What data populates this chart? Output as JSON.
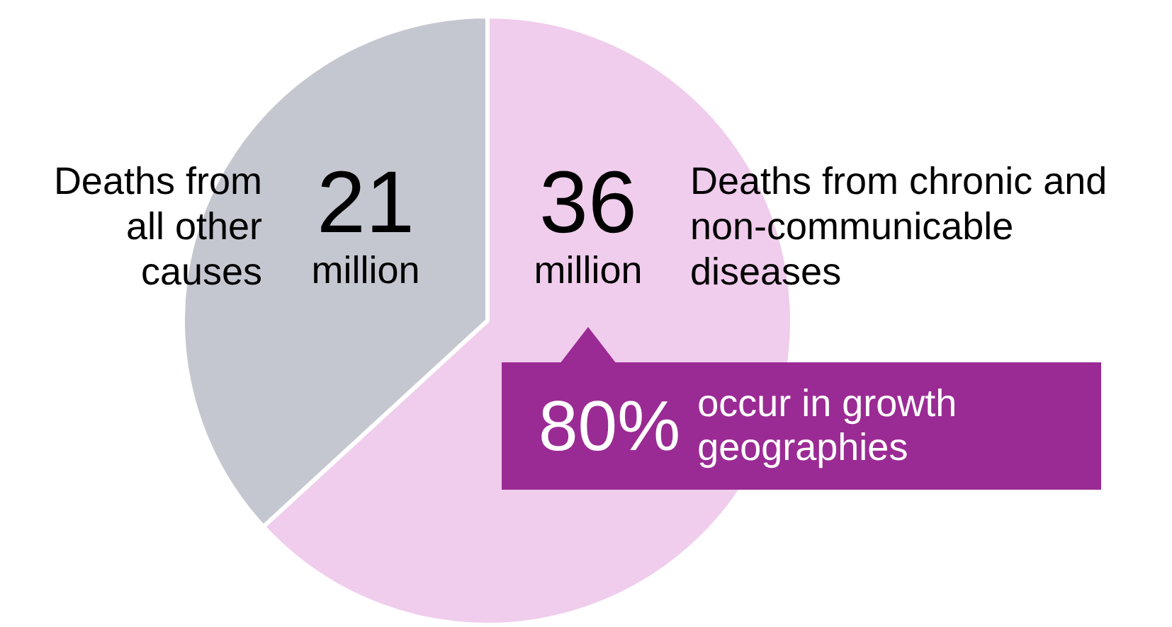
{
  "chart_data": {
    "type": "pie",
    "categories": [
      "Deaths from chronic and non-communicable diseases",
      "Deaths from all other causes"
    ],
    "values": [
      36,
      21
    ],
    "colors": [
      "#f0cdec",
      "#c5c7d0"
    ],
    "value_labels": [
      "36 million",
      "21 million"
    ],
    "legend": false,
    "annotations": [
      "80% occur in growth geographies"
    ]
  }
}
